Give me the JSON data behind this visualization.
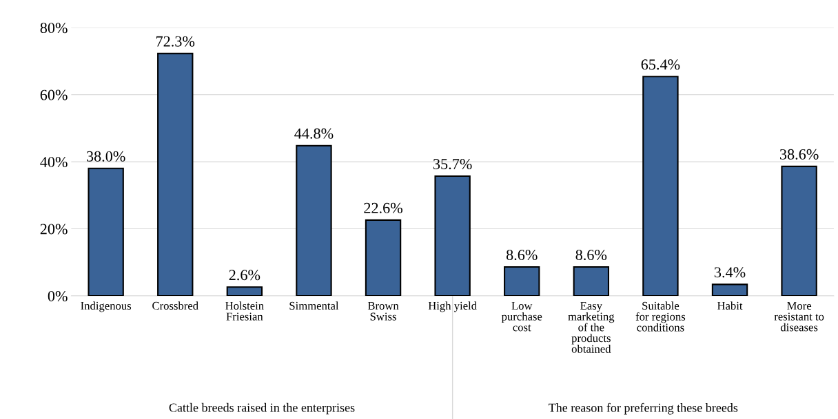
{
  "chart_data": {
    "type": "bar",
    "categories": [
      "Indigenous",
      "Crossbred",
      "Holstein\nFriesian",
      "Simmental",
      "Brown\nSwiss",
      "High yield",
      "Low\npurchase\ncost",
      "Easy\nmarketing\nof the\nproducts\nobtained",
      "Suitable\nfor regions\nconditions",
      "Habit",
      "More\nresistant to\ndiseases"
    ],
    "values": [
      38.0,
      72.3,
      2.6,
      44.8,
      22.6,
      35.7,
      8.6,
      8.6,
      65.4,
      3.4,
      38.6
    ],
    "value_labels": [
      "38.0%",
      "72.3%",
      "2.6%",
      "44.8%",
      "22.6%",
      "35.7%",
      "8.6%",
      "8.6%",
      "65.4%",
      "3.4%",
      "38.6%"
    ],
    "color": "#3a6397",
    "ylim": [
      0,
      80
    ],
    "yticks": [
      {
        "value": 0,
        "label": "0%"
      },
      {
        "value": 20,
        "label": "20%"
      },
      {
        "value": 40,
        "label": "40%"
      },
      {
        "value": 60,
        "label": "60%"
      },
      {
        "value": 80,
        "label": "80%"
      }
    ],
    "grid": "y",
    "legend": false,
    "annotations": [
      "Cattle breeds raised in the enterprises",
      "The reason for preferring these breeds"
    ]
  }
}
